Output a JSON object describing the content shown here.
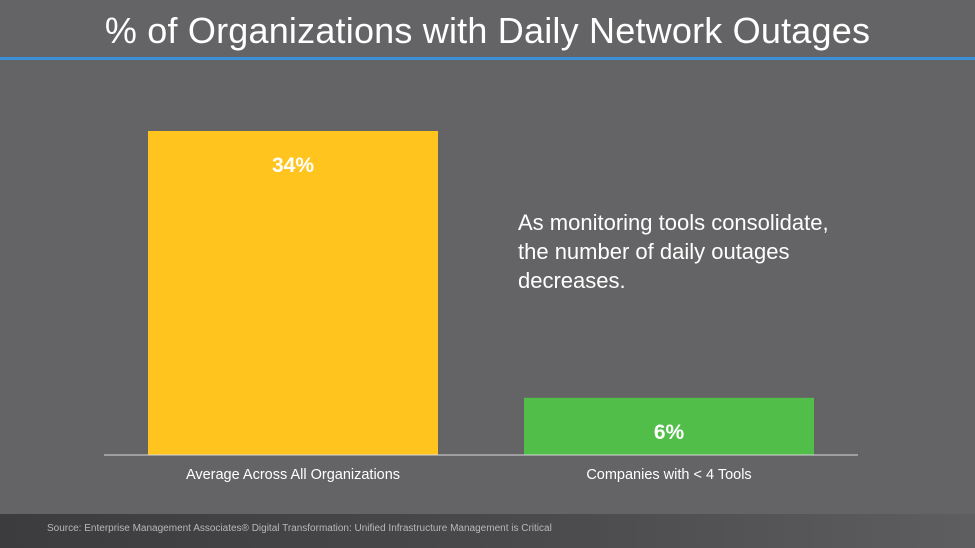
{
  "title": "% of Organizations with Daily Network Outages",
  "annotation": "As monitoring tools consolidate, the number of daily outages decreases.",
  "source": "Source: Enterprise Management Associates® Digital Transformation: Unified Infrastructure Management is Critical",
  "colors": {
    "background": "#646466",
    "title_rule": "#3a8fd6",
    "bars": [
      "#ffc41e",
      "#52be4a"
    ]
  },
  "chart_data": {
    "type": "bar",
    "categories": [
      "Average Across All Organizations",
      "Companies with < 4 Tools"
    ],
    "values": [
      34,
      6
    ],
    "data_labels": [
      "34%",
      "6%"
    ],
    "ylim": [
      0,
      34
    ],
    "grid": false
  }
}
